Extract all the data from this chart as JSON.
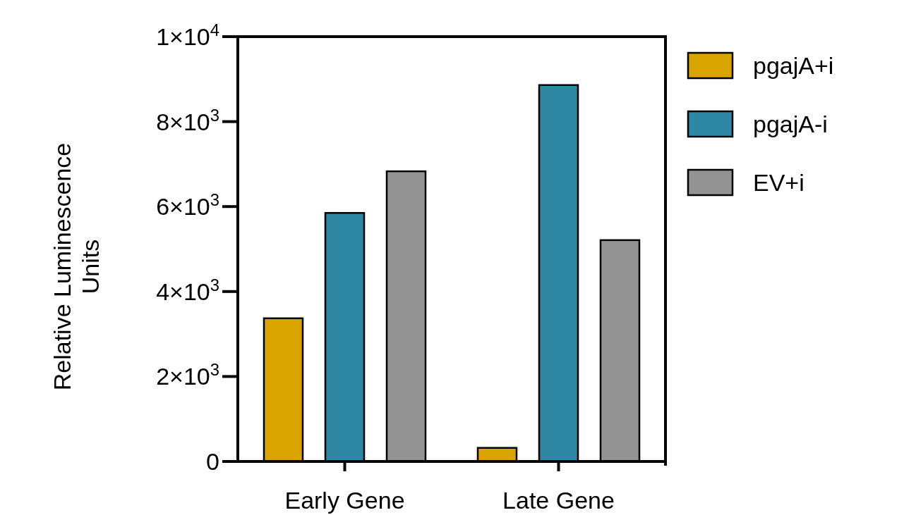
{
  "chart_data": {
    "type": "bar",
    "ylabel": "Relative Luminescence Units",
    "categories": [
      "Early Gene",
      "Late Gene"
    ],
    "series": [
      {
        "name": "pgajA+i",
        "color": "#d9a300",
        "values": [
          3370,
          320
        ]
      },
      {
        "name": "pgajA-i",
        "color": "#2e87a3",
        "values": [
          5850,
          8860
        ]
      },
      {
        "name": "EV+i",
        "color": "#939393",
        "values": [
          6830,
          5210
        ]
      }
    ],
    "ylim": [
      0,
      10000
    ],
    "yticks": [
      0,
      {
        "value": 2000,
        "label": "2×10$^{3}$"
      },
      {
        "value": 4000,
        "label": "4×10$^{3}$"
      },
      {
        "value": 6000,
        "label": "6×10$^{3}$"
      },
      {
        "value": 8000,
        "label": "8×10$^{3}$"
      },
      {
        "value": 10000,
        "label": "1×10$^{4}$"
      }
    ],
    "legend": "right",
    "grid": false
  }
}
